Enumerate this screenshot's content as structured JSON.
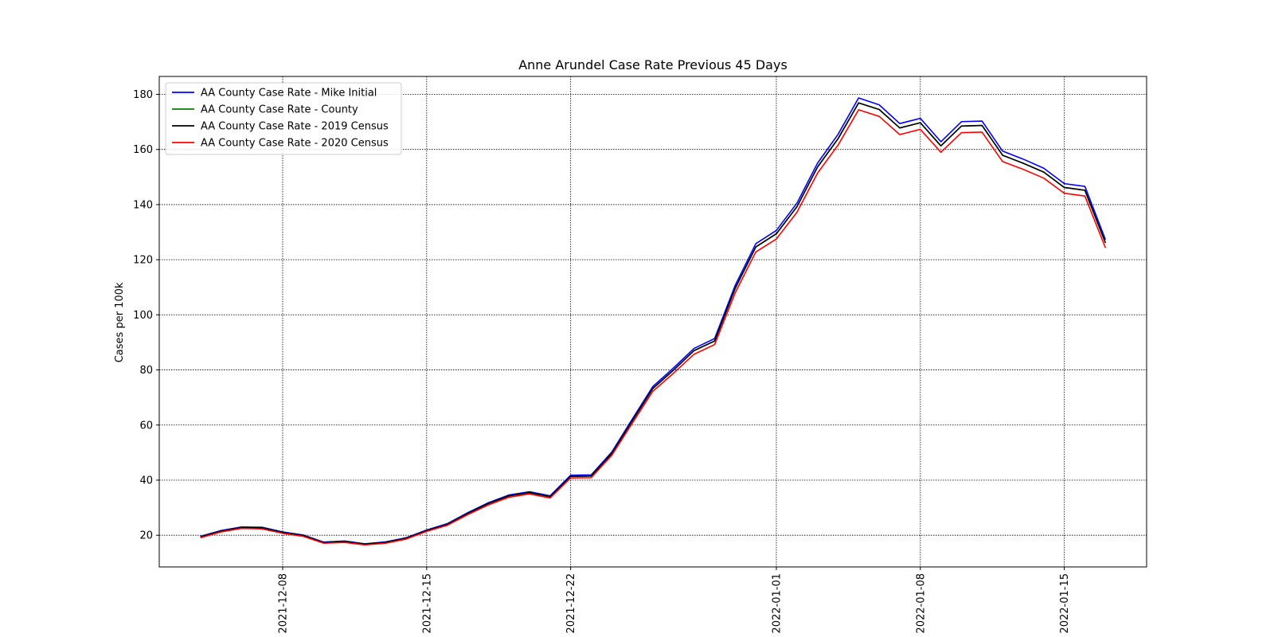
{
  "chart_data": {
    "type": "line",
    "title": "Anne Arundel Case Rate Previous 45 Days",
    "xlabel": "",
    "ylabel": "Cases per 100k",
    "x_start": "2021-12-04",
    "xlim": [
      "2021-12-02",
      "2022-01-19"
    ],
    "ylim": [
      8.5,
      186.5
    ],
    "x_ticks": [
      "2021-12-08",
      "2021-12-15",
      "2021-12-22",
      "2022-01-01",
      "2022-01-08",
      "2022-01-15"
    ],
    "y_ticks": [
      20,
      40,
      60,
      80,
      100,
      120,
      140,
      160,
      180
    ],
    "grid": true,
    "legend_position": "top-left",
    "series": [
      {
        "name": "AA County Case Rate - Mike Initial",
        "color": "#0000ff",
        "values": [
          19.6,
          21.7,
          23.0,
          22.9,
          21.2,
          20.1,
          17.5,
          17.9,
          16.9,
          17.6,
          19.1,
          21.9,
          24.2,
          28.2,
          31.8,
          34.6,
          35.8,
          34.3,
          41.8,
          41.9,
          50.2,
          62.2,
          74.0,
          80.7,
          87.8,
          91.4,
          110.7,
          125.8,
          130.6,
          140.5,
          155.0,
          165.5,
          178.7,
          176.2,
          169.4,
          171.3,
          162.8,
          170.1,
          170.3,
          159.4,
          156.5,
          153.2,
          147.6,
          146.6,
          127.3
        ]
      },
      {
        "name": "AA County Case Rate - County",
        "color": "#008000",
        "values": [
          19.4,
          21.5,
          22.8,
          22.7,
          21.0,
          19.9,
          17.3,
          17.7,
          16.8,
          17.4,
          18.9,
          21.7,
          23.9,
          27.9,
          31.5,
          34.3,
          35.5,
          34.0,
          41.4,
          41.5,
          49.7,
          61.6,
          73.3,
          79.9,
          87.0,
          90.5,
          109.6,
          124.6,
          129.4,
          139.2,
          153.6,
          163.9,
          176.9,
          174.5,
          167.8,
          169.7,
          161.3,
          168.5,
          168.7,
          157.9,
          155.0,
          151.8,
          146.2,
          145.2,
          126.1
        ]
      },
      {
        "name": "AA County Case Rate - 2019 Census",
        "color": "#000000",
        "values": [
          19.4,
          21.5,
          22.8,
          22.7,
          21.0,
          19.9,
          17.3,
          17.7,
          16.8,
          17.4,
          18.9,
          21.7,
          23.9,
          27.9,
          31.5,
          34.3,
          35.5,
          34.0,
          41.4,
          41.5,
          49.7,
          61.6,
          73.3,
          79.9,
          87.0,
          90.5,
          109.6,
          124.6,
          129.4,
          139.2,
          153.6,
          163.9,
          176.9,
          174.5,
          167.8,
          169.7,
          161.3,
          168.5,
          168.7,
          157.9,
          155.0,
          151.8,
          146.2,
          145.2,
          126.1
        ]
      },
      {
        "name": "AA County Case Rate - 2020 Census",
        "color": "#ff0000",
        "values": [
          19.1,
          21.2,
          22.5,
          22.3,
          20.7,
          19.6,
          17.1,
          17.4,
          16.5,
          17.1,
          18.6,
          21.4,
          23.6,
          27.5,
          31.0,
          33.8,
          35.0,
          33.5,
          40.8,
          40.9,
          49.0,
          60.7,
          72.3,
          78.8,
          85.7,
          89.2,
          108.0,
          122.8,
          127.5,
          137.2,
          151.4,
          161.6,
          174.4,
          172.0,
          165.4,
          167.3,
          159.0,
          166.1,
          166.3,
          155.6,
          152.8,
          149.6,
          144.1,
          143.1,
          124.3
        ]
      }
    ]
  }
}
